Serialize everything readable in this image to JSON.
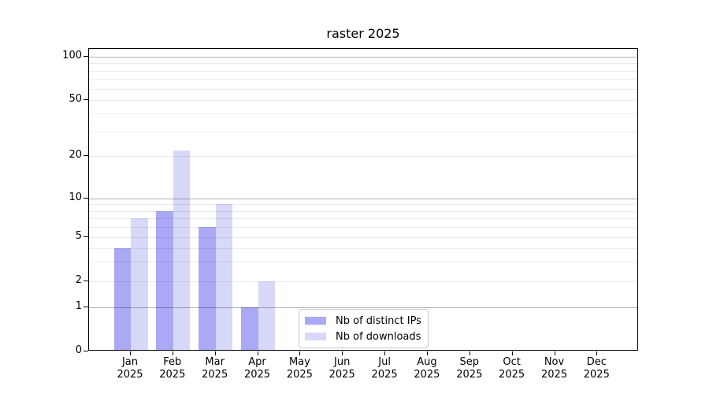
{
  "chart_data": {
    "type": "bar",
    "title": "raster 2025",
    "xlabel": "",
    "ylabel": "",
    "year_label": "2025",
    "categories": [
      "Jan",
      "Feb",
      "Mar",
      "Apr",
      "May",
      "Jun",
      "Jul",
      "Aug",
      "Sep",
      "Oct",
      "Nov",
      "Dec"
    ],
    "series": [
      {
        "name": "Nb of distinct IPs",
        "color": "#a9a9f5",
        "values": [
          4,
          8,
          6,
          1,
          0,
          0,
          0,
          0,
          0,
          0,
          0,
          0
        ]
      },
      {
        "name": "Nb of downloads",
        "color": "#d8d8f9",
        "values": [
          7,
          22,
          9,
          2,
          0,
          0,
          0,
          0,
          0,
          0,
          0,
          0
        ]
      }
    ],
    "yscale": "symlog",
    "yticks": [
      0,
      1,
      2,
      5,
      10,
      20,
      50,
      100
    ],
    "ytick_labels": [
      "0",
      "1",
      "2",
      "5",
      "10",
      "20",
      "50",
      "100"
    ],
    "major_gridlines": [
      1,
      10,
      100
    ],
    "minor_gridlines": [
      2,
      3,
      4,
      5,
      6,
      7,
      8,
      9,
      20,
      30,
      40,
      50,
      60,
      70,
      80,
      90
    ],
    "legend": {
      "position": "lower center",
      "entries": [
        "Nb of distinct IPs",
        "Nb of downloads"
      ]
    },
    "grid": "on",
    "colors": {
      "background": "#ffffff",
      "axis": "#000000",
      "grid_minor": "#ebebeb",
      "grid_major": "#b3b3b3"
    }
  }
}
